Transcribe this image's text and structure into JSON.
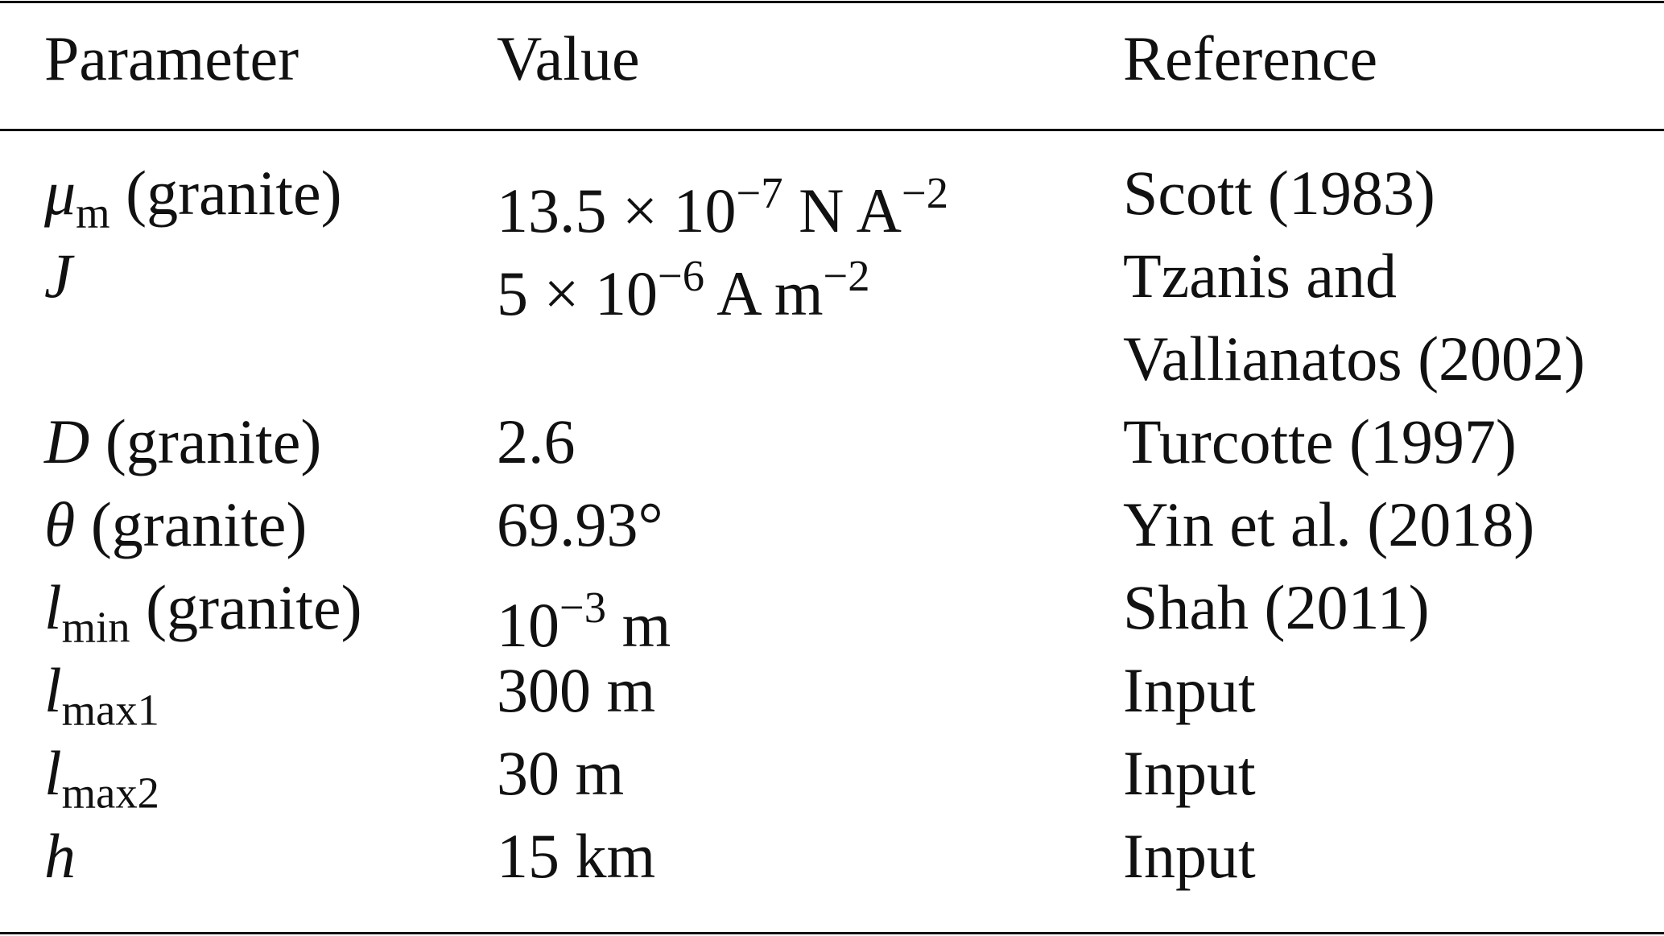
{
  "table": {
    "header": [
      "Parameter",
      "Value",
      "Reference"
    ],
    "rows": [
      {
        "parameter": {
          "symbol": "μ",
          "subscript": "m",
          "text": "(granite)"
        },
        "value": [
          {
            "text": "13.5 × 10"
          },
          {
            "sup": "−7"
          },
          {
            "text": " N A"
          },
          {
            "sup": "−2"
          }
        ],
        "reference": [
          "Scott (1983)"
        ]
      },
      {
        "parameter": {
          "symbol": "J"
        },
        "value": [
          {
            "text": "5 × 10"
          },
          {
            "sup": "−6"
          },
          {
            "text": " A m"
          },
          {
            "sup": "−2"
          }
        ],
        "reference": [
          "Tzanis and",
          "Vallianatos (2002)"
        ]
      },
      {
        "parameter": {
          "symbol": "D",
          "text": "(granite)"
        },
        "value": [
          {
            "text": "2.6"
          }
        ],
        "reference": [
          "Turcotte (1997)"
        ]
      },
      {
        "parameter": {
          "symbol": "θ",
          "text": "(granite)"
        },
        "value": [
          {
            "text": "69.93°"
          }
        ],
        "reference": [
          "Yin et al. (2018)"
        ]
      },
      {
        "parameter": {
          "symbol": "l",
          "subscript": "min",
          "text": "(granite)"
        },
        "value": [
          {
            "text": "10"
          },
          {
            "sup": "−3"
          },
          {
            "text": " m"
          }
        ],
        "reference": [
          "Shah (2011)"
        ]
      },
      {
        "parameter": {
          "symbol": "l",
          "subscript": "max1"
        },
        "value": [
          {
            "text": "300 m"
          }
        ],
        "reference": [
          "Input"
        ]
      },
      {
        "parameter": {
          "symbol": "l",
          "subscript": "max2"
        },
        "value": [
          {
            "text": "30 m"
          }
        ],
        "reference": [
          "Input"
        ]
      },
      {
        "parameter": {
          "symbol": "h"
        },
        "value": [
          {
            "text": "15 km"
          }
        ],
        "reference": [
          "Input"
        ]
      }
    ]
  }
}
